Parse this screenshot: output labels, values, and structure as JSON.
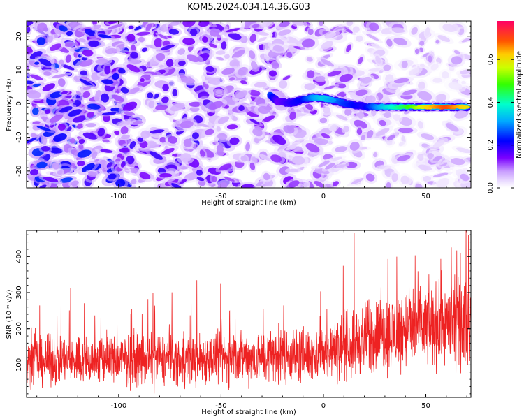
{
  "figure": {
    "title": "KOM5.2024.034.14.36.G03"
  },
  "chart_data": [
    {
      "type": "heatmap",
      "title": "KOM5.2024.034.14.36.G03",
      "xlabel": "Height of straight line (km)",
      "ylabel": "Frequency (Hz)",
      "xlim": [
        -145,
        72
      ],
      "ylim": [
        -25,
        24.5
      ],
      "xticks": [
        -100,
        -50,
        0,
        50
      ],
      "yticks": [
        -20,
        -10,
        0,
        10,
        20
      ],
      "x_tick_labels": [
        "-100",
        "-50",
        "0",
        "50"
      ],
      "y_tick_labels": [
        "-20",
        "-10",
        "0",
        "10",
        "20"
      ],
      "colorbar": {
        "label": "Normalized spectral amplitude",
        "range": [
          0.0,
          0.78
        ],
        "ticks": [
          0.0,
          0.2,
          0.4,
          0.6
        ],
        "tick_labels": [
          "0.0",
          "0.2",
          "0.4",
          "0.6"
        ],
        "colormap": "gist_rainbow"
      },
      "signal_track": {
        "description_points": [
          {
            "x": -26,
            "y": 2.5
          },
          {
            "x": -22,
            "y": 0.5
          },
          {
            "x": -15,
            "y": 0.2
          },
          {
            "x": -10,
            "y": 1.2
          },
          {
            "x": -5,
            "y": 1.8
          },
          {
            "x": 0,
            "y": 1.6
          },
          {
            "x": 5,
            "y": 0.9
          },
          {
            "x": 10,
            "y": 0.1
          },
          {
            "x": 15,
            "y": -0.5
          },
          {
            "x": 20,
            "y": -0.9
          },
          {
            "x": 30,
            "y": -1.0
          },
          {
            "x": 40,
            "y": -1.0
          },
          {
            "x": 50,
            "y": -1.0
          },
          {
            "x": 60,
            "y": -1.0
          },
          {
            "x": 70,
            "y": -1.0
          }
        ],
        "amplitudes": [
          0.25,
          0.15,
          0.2,
          0.22,
          0.3,
          0.35,
          0.3,
          0.25,
          0.22,
          0.2,
          0.35,
          0.45,
          0.6,
          0.7,
          0.6
        ]
      }
    },
    {
      "type": "line",
      "xlabel": "Height of straight line (km)",
      "ylabel": "SNR (10 * v/v)",
      "xlim": [
        -145,
        72
      ],
      "ylim": [
        10,
        472
      ],
      "xticks": [
        -100,
        -50,
        0,
        50
      ],
      "yticks": [
        100,
        200,
        300,
        400
      ],
      "x_tick_labels": [
        "-100",
        "-50",
        "0",
        "50"
      ],
      "y_tick_labels": [
        "100",
        "200",
        "300",
        "400"
      ],
      "series": [
        {
          "color": "#ee2222",
          "baseline_points": [
            [
              -145,
              110
            ],
            [
              -50,
              118
            ],
            [
              0,
              130
            ],
            [
              20,
              170
            ],
            [
              40,
              200
            ],
            [
              72,
              215
            ]
          ],
          "spread_points": [
            [
              -145,
              55
            ],
            [
              -50,
              60
            ],
            [
              0,
              65
            ],
            [
              20,
              85
            ],
            [
              40,
              95
            ],
            [
              72,
              100
            ]
          ]
        }
      ]
    }
  ]
}
